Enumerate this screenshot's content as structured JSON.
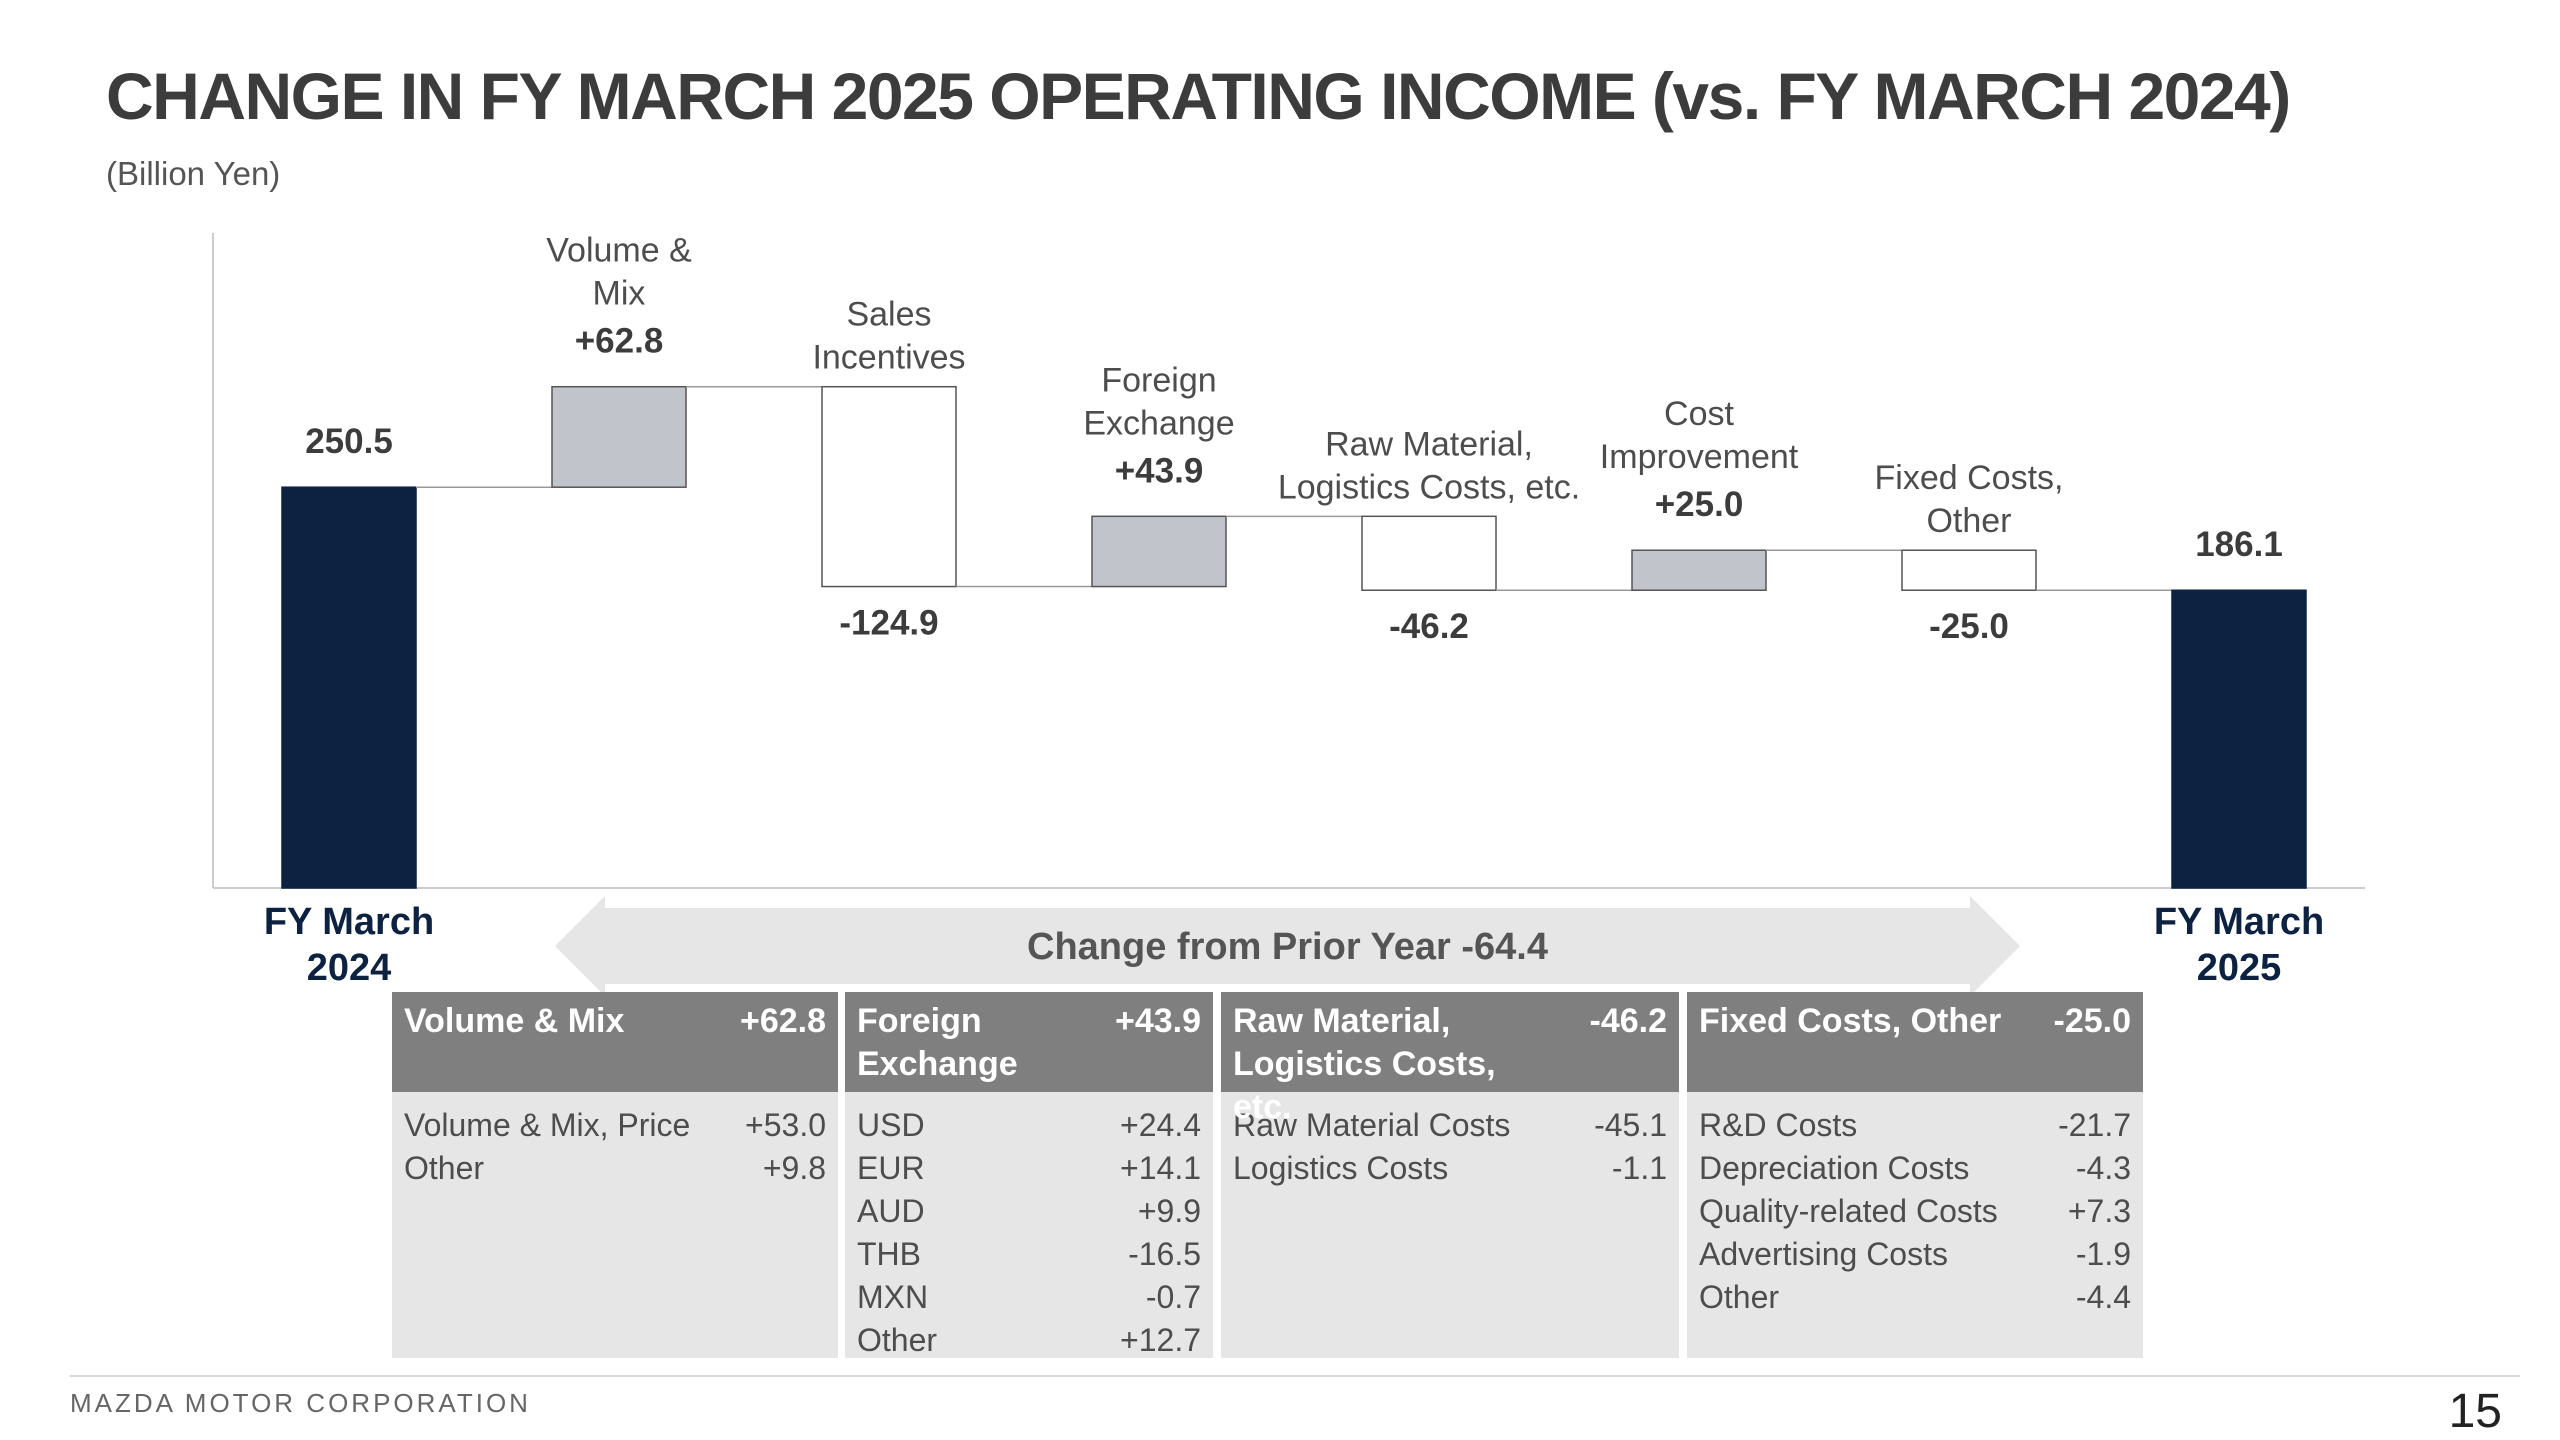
{
  "title": "CHANGE IN FY MARCH 2025 OPERATING INCOME (vs. FY MARCH 2024)",
  "subtitle": "(Billion Yen)",
  "colors": {
    "total": "#0d2240",
    "increase": "#c2c4cc",
    "decrease": "#ffffff",
    "header": "#7f7f7f",
    "panel": "#e6e6e6"
  },
  "chart_data": {
    "type": "bar",
    "subtype": "waterfall",
    "title": "",
    "xlabel": "",
    "ylabel": "",
    "grid": false,
    "categories": [
      {
        "name": "FY March\n2024",
        "label": "",
        "value": 250.5,
        "kind": "total",
        "display": "250.5"
      },
      {
        "name": "",
        "label": "Volume &\nMix",
        "value": 62.8,
        "kind": "delta",
        "display": "+62.8"
      },
      {
        "name": "",
        "label": "Sales\nIncentives",
        "value": -124.9,
        "kind": "delta",
        "display": "-124.9"
      },
      {
        "name": "",
        "label": "Foreign\nExchange",
        "value": 43.9,
        "kind": "delta",
        "display": "+43.9"
      },
      {
        "name": "",
        "label": "Raw Material,\nLogistics Costs, etc.",
        "value": -46.2,
        "kind": "delta",
        "display": "-46.2"
      },
      {
        "name": "",
        "label": "Cost\nImprovement",
        "value": 25.0,
        "kind": "delta",
        "display": "+25.0"
      },
      {
        "name": "",
        "label": "Fixed Costs,\nOther",
        "value": -25.0,
        "kind": "delta",
        "display": "-25.0"
      },
      {
        "name": "FY March\n2025",
        "label": "",
        "value": 186.1,
        "kind": "total",
        "display": "186.1"
      }
    ],
    "change_label": "Change from Prior Year   -64.4",
    "change_value": -64.4
  },
  "details": [
    {
      "title": "Volume & Mix",
      "value": "+62.8",
      "rows": [
        {
          "label": "Volume & Mix, Price",
          "value": "+53.0"
        },
        {
          "label": "Other",
          "value": "+9.8"
        }
      ]
    },
    {
      "title": "Foreign\nExchange",
      "value": "+43.9",
      "rows": [
        {
          "label": "USD",
          "value": "+24.4"
        },
        {
          "label": "EUR",
          "value": "+14.1"
        },
        {
          "label": "AUD",
          "value": "+9.9"
        },
        {
          "label": "THB",
          "value": "-16.5"
        },
        {
          "label": "MXN",
          "value": "-0.7"
        },
        {
          "label": "Other",
          "value": "+12.7"
        }
      ]
    },
    {
      "title": "Raw Material,\nLogistics Costs, etc.",
      "value": "-46.2",
      "rows": [
        {
          "label": "Raw Material Costs",
          "value": "-45.1"
        },
        {
          "label": "Logistics Costs",
          "value": "-1.1"
        }
      ]
    },
    {
      "title": "Fixed Costs, Other",
      "value": "-25.0",
      "rows": [
        {
          "label": "R&D Costs",
          "value": "-21.7"
        },
        {
          "label": "Depreciation Costs",
          "value": "-4.3"
        },
        {
          "label": "Quality-related Costs",
          "value": "+7.3"
        },
        {
          "label": "Advertising Costs",
          "value": "-1.9"
        },
        {
          "label": "Other",
          "value": "-4.4"
        }
      ]
    }
  ],
  "footer": {
    "company": "MAZDA MOTOR CORPORATION",
    "page": "15"
  }
}
